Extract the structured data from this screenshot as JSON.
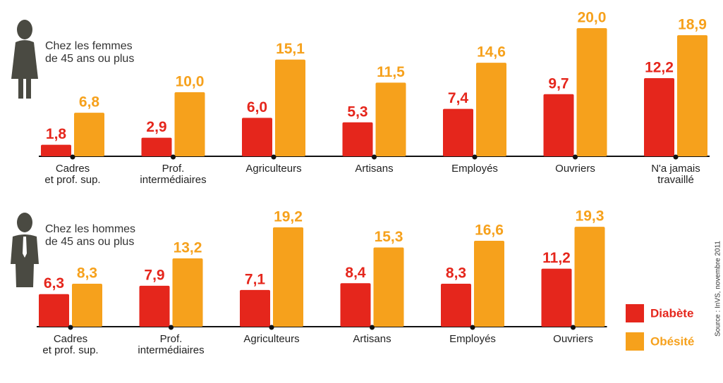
{
  "chart_data": [
    {
      "type": "bar",
      "title": "Chez les femmes\nde 45 ans ou plus",
      "categories": [
        "Cadres\net prof. sup.",
        "Prof.\nintermédiaires",
        "Agriculteurs",
        "Artisans",
        "Employés",
        "Ouvriers",
        "N'a jamais\ntravaillé"
      ],
      "series": [
        {
          "name": "Diabète",
          "color": "#e5261c",
          "values": [
            1.8,
            2.9,
            6.0,
            5.3,
            7.4,
            9.7,
            12.2
          ],
          "value_labels": [
            "1,8",
            "2,9",
            "6,0",
            "5,3",
            "7,4",
            "9,7",
            "12,2"
          ]
        },
        {
          "name": "Obésité",
          "color": "#f6a11c",
          "values": [
            6.8,
            10.0,
            15.1,
            11.5,
            14.6,
            20.0,
            18.9
          ],
          "value_labels": [
            "6,8",
            "10,0",
            "15,1",
            "11,5",
            "14,6",
            "20,0",
            "18,9"
          ]
        }
      ]
    },
    {
      "type": "bar",
      "title": "Chez les hommes\nde 45 ans ou plus",
      "categories": [
        "Cadres\net prof. sup.",
        "Prof.\nintermédiaires",
        "Agriculteurs",
        "Artisans",
        "Employés",
        "Ouvriers"
      ],
      "series": [
        {
          "name": "Diabète",
          "color": "#e5261c",
          "values": [
            6.3,
            7.9,
            7.1,
            8.4,
            8.3,
            11.2
          ],
          "value_labels": [
            "6,3",
            "7,9",
            "7,1",
            "8,4",
            "8,3",
            "11,2"
          ]
        },
        {
          "name": "Obésité",
          "color": "#f6a11c",
          "values": [
            8.3,
            13.2,
            19.2,
            15.3,
            16.6,
            19.3
          ],
          "value_labels": [
            "8,3",
            "13,2",
            "19,2",
            "15,3",
            "16,6",
            "19,3"
          ]
        }
      ]
    }
  ],
  "source": "Source : InVS, novembre 2011"
}
